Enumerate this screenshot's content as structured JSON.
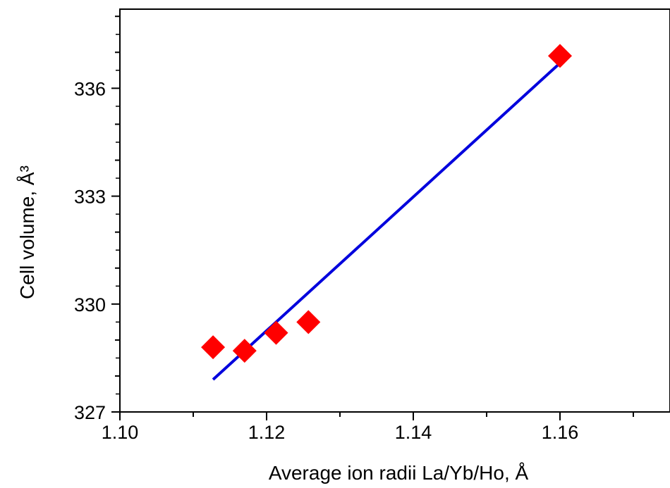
{
  "chart_data": {
    "type": "scatter",
    "xlabel": "Average ion radii La/Yb/Ho, Å",
    "ylabel": "Cell volume, Å³",
    "xlim": [
      1.1,
      1.175
    ],
    "ylim": [
      327,
      338.2
    ],
    "x_ticks": [
      "1.10",
      "1.12",
      "1.14",
      "1.16"
    ],
    "y_ticks": [
      "327",
      "330",
      "333",
      "336"
    ],
    "grid": false,
    "series": [
      {
        "kind": "points",
        "marker": "diamond",
        "color": "#ff0000",
        "x": [
          1.1127,
          1.117,
          1.1213,
          1.1257,
          1.16
        ],
        "y": [
          328.8,
          328.7,
          329.2,
          329.5,
          336.9
        ]
      },
      {
        "kind": "fit-line",
        "color": "#0000dd",
        "x": [
          1.1127,
          1.16
        ],
        "y": [
          327.9,
          336.7
        ]
      }
    ]
  }
}
